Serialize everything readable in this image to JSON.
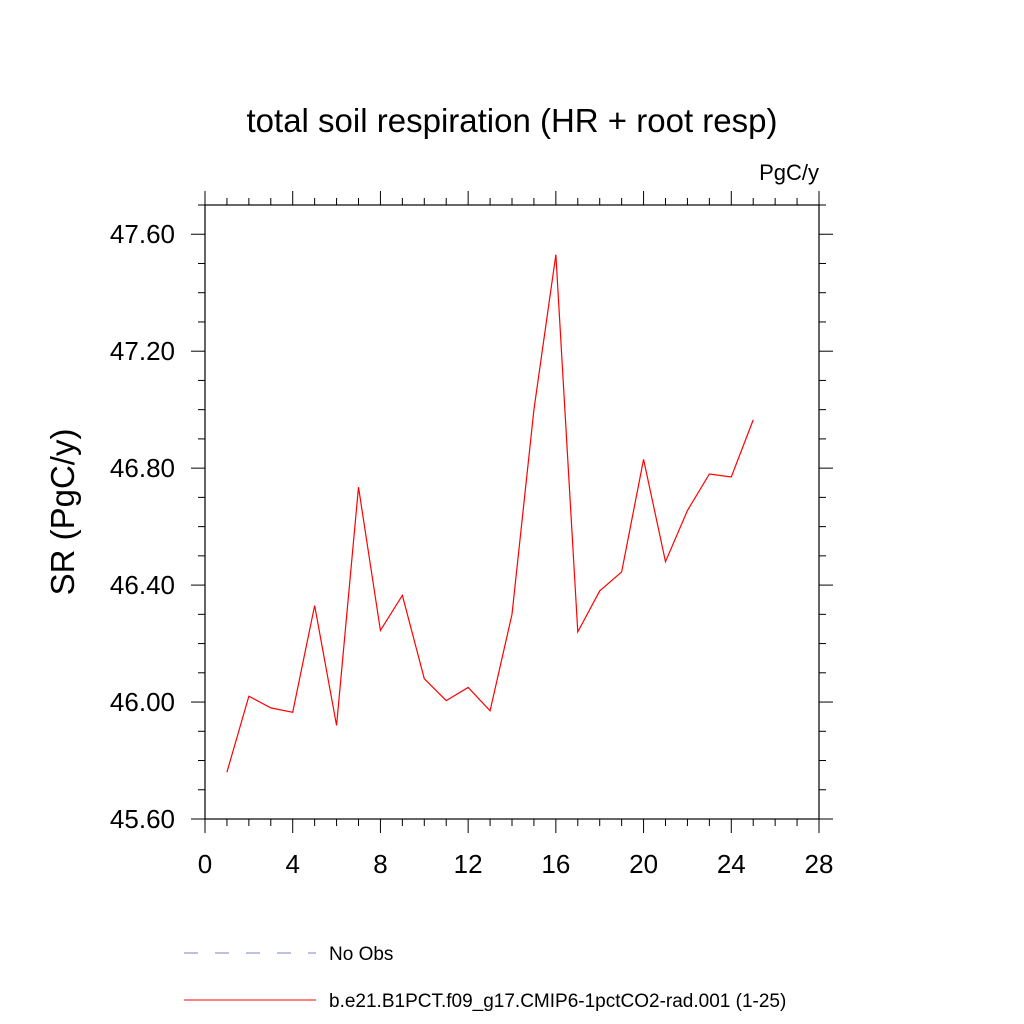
{
  "chart_data": {
    "type": "line",
    "title": "total soil respiration (HR + root resp)",
    "units": "PgC/y",
    "xlabel": "",
    "ylabel": "SR  (PgC/y)",
    "xlim": [
      0,
      28
    ],
    "ylim": [
      45.6,
      47.7
    ],
    "x_ticks": [
      0,
      4,
      8,
      12,
      16,
      20,
      24,
      28
    ],
    "x_tick_labels": [
      "0",
      "4",
      "8",
      "12",
      "16",
      "20",
      "24",
      "28"
    ],
    "y_ticks": [
      45.6,
      46.0,
      46.4,
      46.8,
      47.2,
      47.6
    ],
    "y_tick_labels": [
      "45.60",
      "46.00",
      "46.40",
      "46.80",
      "47.20",
      "47.60"
    ],
    "grid": false,
    "legend_position": "bottom",
    "series": [
      {
        "name": "b.e21.B1PCT.f09_g17.CMIP6-1pctCO2-rad.001 (1-25)",
        "color": "#ff0000",
        "style": "solid",
        "x": [
          1,
          2,
          3,
          4,
          5,
          6,
          7,
          8,
          9,
          10,
          11,
          12,
          13,
          14,
          15,
          16,
          17,
          18,
          19,
          20,
          21,
          22,
          23,
          24,
          25
        ],
        "y": [
          45.76,
          46.02,
          45.98,
          45.965,
          46.33,
          45.92,
          46.735,
          46.245,
          46.365,
          46.08,
          46.005,
          46.05,
          45.97,
          46.3,
          47.0,
          47.53,
          46.24,
          46.38,
          46.445,
          46.83,
          46.48,
          46.655,
          46.78,
          46.77,
          46.965
        ]
      }
    ],
    "legend": [
      {
        "label": "No Obs",
        "color": "#8080c8",
        "style": "dashed"
      },
      {
        "label": "b.e21.B1PCT.f09_g17.CMIP6-1pctCO2-rad.001 (1-25)",
        "color": "#ff0000",
        "style": "solid"
      }
    ]
  }
}
